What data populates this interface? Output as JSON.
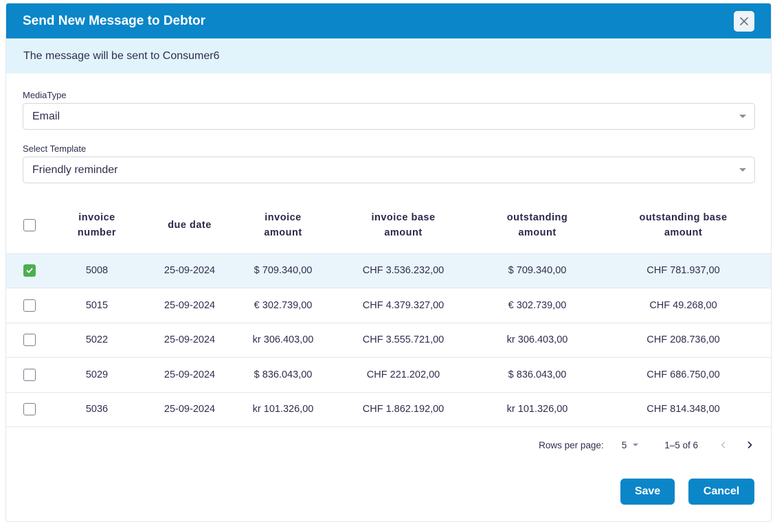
{
  "dialog": {
    "title": "Send New Message to Debtor",
    "close_icon": "close-icon"
  },
  "banner": {
    "message": "The message will be sent to Consumer6"
  },
  "media_type": {
    "label": "MediaType",
    "value": "Email"
  },
  "template": {
    "label": "Select Template",
    "value": "Friendly reminder"
  },
  "table": {
    "headers": {
      "invoice_number": [
        "invoice",
        "number"
      ],
      "due_date": [
        "due date"
      ],
      "invoice_amount": [
        "invoice",
        "amount"
      ],
      "invoice_base_amount": [
        "invoice base",
        "amount"
      ],
      "outstanding_amount": [
        "outstanding",
        "amount"
      ],
      "outstanding_base_amount": [
        "outstanding base",
        "amount"
      ]
    },
    "rows": [
      {
        "selected": true,
        "invoice_number": "5008",
        "due_date": "25-09-2024",
        "invoice_amount": "$ 709.340,00",
        "invoice_base_amount": "CHF 3.536.232,00",
        "outstanding_amount": "$ 709.340,00",
        "outstanding_base_amount": "CHF 781.937,00"
      },
      {
        "selected": false,
        "invoice_number": "5015",
        "due_date": "25-09-2024",
        "invoice_amount": "€ 302.739,00",
        "invoice_base_amount": "CHF 4.379.327,00",
        "outstanding_amount": "€ 302.739,00",
        "outstanding_base_amount": "CHF 49.268,00"
      },
      {
        "selected": false,
        "invoice_number": "5022",
        "due_date": "25-09-2024",
        "invoice_amount": "kr 306.403,00",
        "invoice_base_amount": "CHF 3.555.721,00",
        "outstanding_amount": "kr 306.403,00",
        "outstanding_base_amount": "CHF 208.736,00"
      },
      {
        "selected": false,
        "invoice_number": "5029",
        "due_date": "25-09-2024",
        "invoice_amount": "$ 836.043,00",
        "invoice_base_amount": "CHF 221.202,00",
        "outstanding_amount": "$ 836.043,00",
        "outstanding_base_amount": "CHF 686.750,00"
      },
      {
        "selected": false,
        "invoice_number": "5036",
        "due_date": "25-09-2024",
        "invoice_amount": "kr 101.326,00",
        "invoice_base_amount": "CHF 1.862.192,00",
        "outstanding_amount": "kr 101.326,00",
        "outstanding_base_amount": "CHF 814.348,00"
      }
    ]
  },
  "pagination": {
    "rows_per_page_label": "Rows per page:",
    "rows_per_page_value": "5",
    "range": "1–5 of 6"
  },
  "actions": {
    "save_label": "Save",
    "cancel_label": "Cancel"
  },
  "colors": {
    "primary": "#0a86c9",
    "banner_bg": "#e2f4fb",
    "selected_row_bg": "#eaf5fb",
    "checkbox_checked": "#4caf50"
  }
}
